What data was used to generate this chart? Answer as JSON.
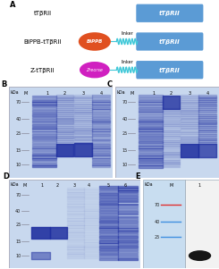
{
  "panel_A": {
    "label": "A",
    "rows": [
      {
        "left_text": "tTβRII",
        "shape": "none",
        "box_color": "#5b9bd5",
        "box_text": "tTβRII"
      },
      {
        "left_text": "BiPPB-tTβRII",
        "shape": "bipppb",
        "shape_color": "#e05020",
        "shape_text": "BiPPB",
        "box_color": "#5b9bd5",
        "box_text": "tTβRII"
      },
      {
        "left_text": "Z-tTβRII",
        "shape": "zyme",
        "shape_color": "#d020c0",
        "shape_text": "Zreorse",
        "box_color": "#5b9bd5",
        "box_text": "tTβRII"
      }
    ],
    "linker_color": "#40c8d8",
    "linker_text": "linker"
  },
  "gel_bg": "#b0c0de",
  "gel_light": "#c8d8ee",
  "gel_blue_dark": "#2030a0",
  "gel_blue_mid": "#4060b8",
  "marker_line_color": "#9090b8",
  "kda_labels": [
    "70",
    "40",
    "25",
    "15",
    "10"
  ],
  "panel_B_label": "B",
  "panel_C_label": "C",
  "panel_D_label": "D",
  "panel_E_label": "E",
  "background": "#ffffff"
}
